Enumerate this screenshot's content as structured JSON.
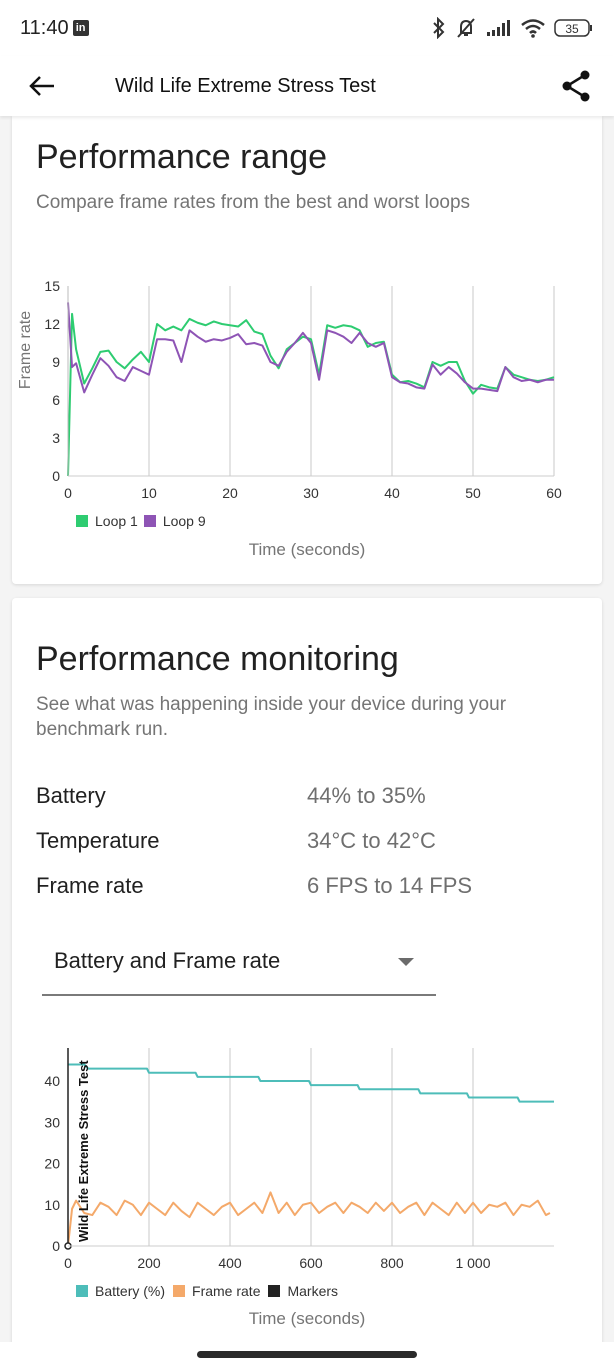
{
  "status_bar": {
    "time": "11:40",
    "notification_icon": "linkedin-icon",
    "icons": [
      "bluetooth-icon",
      "muted-bell-icon",
      "signal-icon",
      "wifi-icon",
      "battery-icon"
    ],
    "battery_level": "35"
  },
  "app_bar": {
    "title": "Wild Life Extreme Stress Test",
    "back_icon": "arrow-left-icon",
    "share_icon": "share-icon"
  },
  "performance_range": {
    "title": "Performance range",
    "subtitle": "Compare frame rates from the best and worst loops",
    "legend": [
      {
        "label": "Loop 1",
        "color": "#2ecc71"
      },
      {
        "label": "Loop 9",
        "color": "#8e54b5"
      }
    ],
    "xlabel": "Time (seconds)",
    "ylabel": "Frame rate"
  },
  "performance_monitoring": {
    "title": "Performance monitoring",
    "subtitle": "See what was happening inside your device during your benchmark run.",
    "stats": [
      {
        "label": "Battery",
        "value": "44% to 35%"
      },
      {
        "label": "Temperature",
        "value": "34°C to 42°C"
      },
      {
        "label": "Frame rate",
        "value": "6 FPS to 14 FPS"
      }
    ],
    "dropdown": {
      "selected": "Battery and Frame rate"
    },
    "legend": [
      {
        "label": "Battery (%)",
        "color": "#4dbdb9"
      },
      {
        "label": "Frame rate",
        "color": "#f4a96a"
      },
      {
        "label": "Markers",
        "color": "#222222"
      }
    ],
    "xlabel": "Time (seconds)",
    "marker_label": "Wild Life Extreme Stress Test"
  },
  "chart_data": [
    {
      "type": "line",
      "title": "Performance range",
      "xlabel": "Time (seconds)",
      "ylabel": "Frame rate",
      "xlim": [
        0,
        60
      ],
      "ylim": [
        0,
        15
      ],
      "x_ticks": [
        0,
        10,
        20,
        30,
        40,
        50,
        60
      ],
      "y_ticks": [
        0,
        3,
        6,
        9,
        12,
        15
      ],
      "grid": "vertical",
      "legend_position": "bottom-left",
      "x": [
        0,
        0.5,
        1,
        2,
        3,
        4,
        5,
        6,
        7,
        8,
        9,
        10,
        11,
        12,
        13,
        14,
        15,
        16,
        17,
        18,
        19,
        20,
        21,
        22,
        23,
        24,
        25,
        26,
        27,
        28,
        29,
        30,
        31,
        32,
        33,
        34,
        35,
        36,
        37,
        38,
        39,
        40,
        41,
        42,
        43,
        44,
        45,
        46,
        47,
        48,
        49,
        50,
        51,
        52,
        53,
        54,
        55,
        56,
        57,
        58,
        59,
        60
      ],
      "series": [
        {
          "name": "Loop 1",
          "color": "#2ecc71",
          "values": [
            0,
            12.8,
            10,
            7.3,
            8.5,
            9.8,
            9.9,
            9,
            8.5,
            9.2,
            9.8,
            9,
            12,
            11.5,
            11.8,
            11.5,
            12.4,
            12.1,
            11.9,
            12.2,
            12,
            11.9,
            11.8,
            12.3,
            11.4,
            11.2,
            9.5,
            8.5,
            10,
            10.5,
            11,
            10.8,
            8,
            11.9,
            11.7,
            11.9,
            11.8,
            11.5,
            10.2,
            10.5,
            10.6,
            8,
            7.4,
            7.5,
            7.3,
            7,
            9,
            8.7,
            9,
            9,
            7.5,
            6.5,
            7.2,
            7,
            6.9,
            8.6,
            8,
            7.8,
            7.6,
            7.5,
            7.6,
            7.8
          ]
        },
        {
          "name": "Loop 9",
          "color": "#8e54b5",
          "values": [
            13.7,
            8.6,
            8.9,
            6.6,
            8,
            9.3,
            8.7,
            7.8,
            7.5,
            8.6,
            8.3,
            8,
            10.8,
            10.8,
            10.7,
            9,
            11.5,
            11,
            10.6,
            10.8,
            10.7,
            10.9,
            11.2,
            10.4,
            10.5,
            10.3,
            9,
            8.7,
            9.8,
            10.5,
            11.3,
            10.5,
            7.6,
            11.5,
            11.3,
            11,
            10.5,
            11.3,
            10.5,
            10.2,
            10.5,
            7.8,
            7.4,
            7.3,
            7,
            6.9,
            8.8,
            8,
            8.6,
            8.1,
            7.4,
            6.9,
            6.9,
            6.8,
            6.7,
            8.6,
            7.8,
            7.5,
            7.6,
            7.4,
            7.6,
            7.6
          ]
        }
      ]
    },
    {
      "type": "line",
      "title": "Battery and Frame rate",
      "xlabel": "Time (seconds)",
      "xlim": [
        0,
        1200
      ],
      "ylim": [
        0,
        48
      ],
      "x_ticks": [
        0,
        200,
        400,
        600,
        800,
        1000
      ],
      "x_tick_labels": [
        "0",
        "200",
        "400",
        "600",
        "800",
        "1 000"
      ],
      "y_ticks": [
        0,
        10,
        20,
        30,
        40
      ],
      "grid": "vertical",
      "legend_position": "bottom-left",
      "series": [
        {
          "name": "Battery (%)",
          "color": "#4dbdb9",
          "x": [
            0,
            40,
            50,
            195,
            200,
            315,
            320,
            470,
            475,
            595,
            600,
            715,
            720,
            865,
            870,
            985,
            990,
            1110,
            1115,
            1200
          ],
          "values": [
            44,
            44,
            43,
            43,
            42,
            42,
            41,
            41,
            40,
            40,
            39,
            39,
            38,
            38,
            37,
            37,
            36,
            36,
            35,
            35
          ]
        },
        {
          "name": "Frame rate",
          "color": "#f4a96a",
          "x": [
            0,
            10,
            20,
            40,
            60,
            80,
            100,
            120,
            140,
            160,
            180,
            200,
            220,
            240,
            260,
            280,
            300,
            320,
            340,
            360,
            380,
            400,
            420,
            440,
            460,
            480,
            500,
            520,
            540,
            560,
            580,
            600,
            620,
            640,
            660,
            680,
            700,
            720,
            740,
            760,
            780,
            800,
            820,
            840,
            860,
            880,
            900,
            920,
            940,
            960,
            980,
            1000,
            1020,
            1040,
            1060,
            1080,
            1100,
            1120,
            1140,
            1160,
            1180,
            1190
          ],
          "values": [
            0,
            9,
            11,
            8,
            7.5,
            10.5,
            9.5,
            7.5,
            11,
            10,
            7.5,
            10.5,
            9,
            7.5,
            10.5,
            8.5,
            7,
            10.5,
            9,
            7.5,
            9.5,
            10.5,
            7.5,
            9,
            10.5,
            8,
            13,
            8,
            10.5,
            7.5,
            10,
            10.5,
            8,
            9.5,
            10.5,
            8,
            10.5,
            9.5,
            8,
            10.5,
            8.5,
            10.5,
            8,
            9.5,
            10.5,
            7.5,
            10.5,
            9,
            7.5,
            10.5,
            8,
            10.5,
            8,
            10,
            9.5,
            10.5,
            7.5,
            10,
            9.5,
            11,
            7.5,
            8
          ]
        },
        {
          "name": "Markers",
          "color": "#222222",
          "x": [
            0
          ],
          "values": [
            0
          ],
          "annotation": "Wild Life Extreme Stress Test"
        }
      ]
    }
  ]
}
